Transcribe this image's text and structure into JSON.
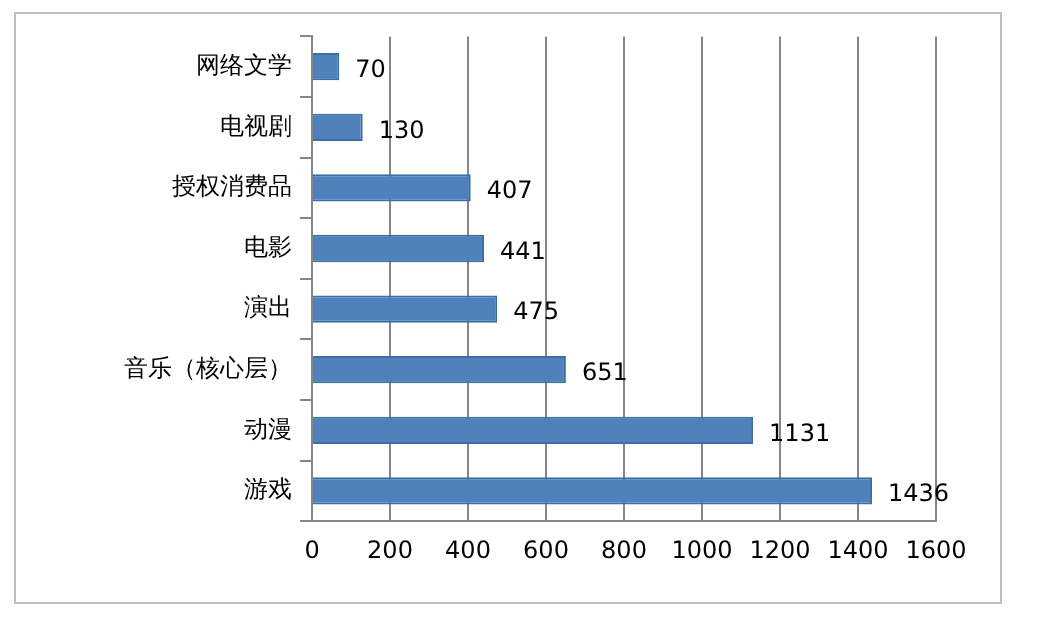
{
  "chart_data": {
    "type": "bar",
    "orientation": "horizontal",
    "categories": [
      "网络文学",
      "电视剧",
      "授权消费品",
      "电影",
      "演出",
      "音乐（核心层）",
      "动漫",
      "游戏"
    ],
    "values": [
      70,
      130,
      407,
      441,
      475,
      651,
      1131,
      1436
    ],
    "color": "#4f81bd",
    "xlim": [
      0,
      1600
    ],
    "xticks": [
      0,
      200,
      400,
      600,
      800,
      1000,
      1200,
      1400,
      1600
    ],
    "grid": "x",
    "data_labels": true
  }
}
